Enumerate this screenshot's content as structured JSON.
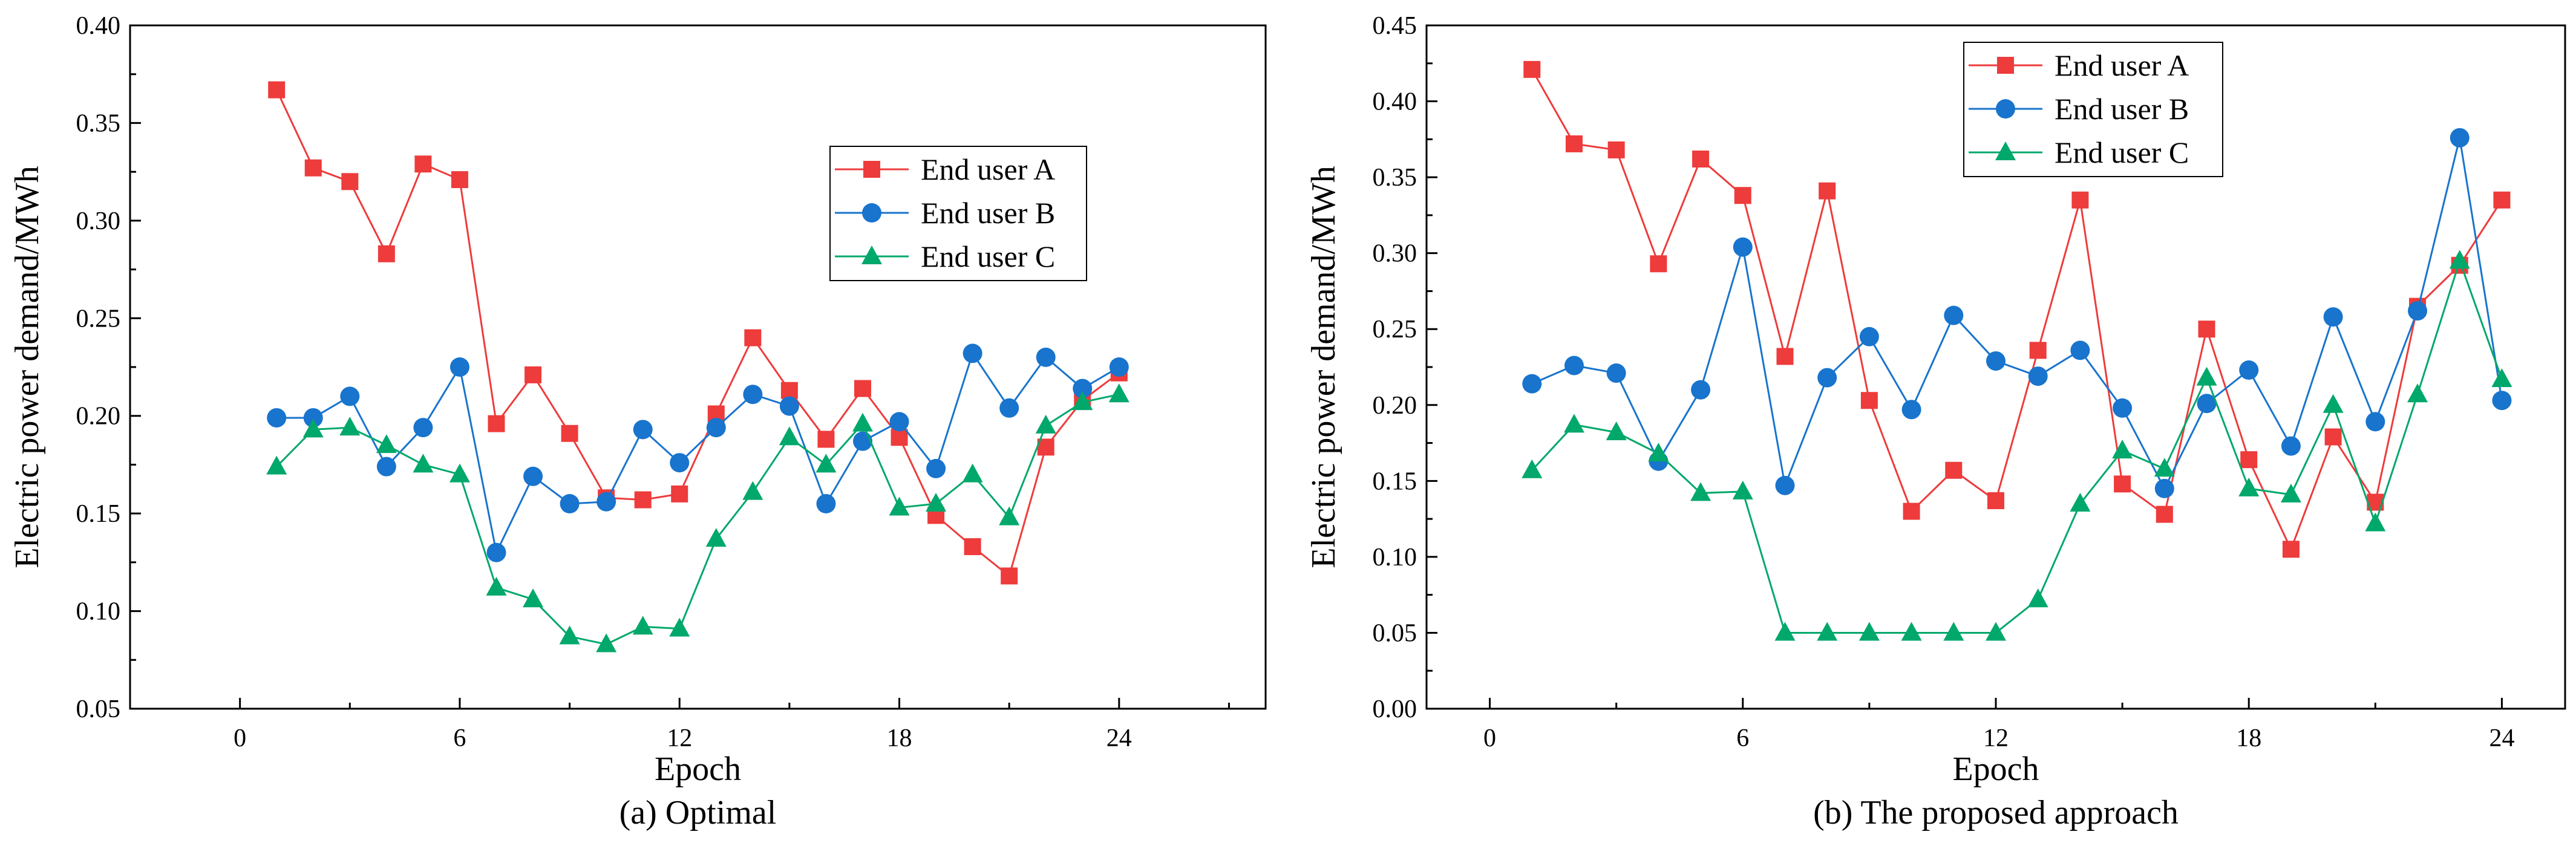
{
  "chart_data": [
    {
      "type": "line",
      "caption": "(a) Optimal",
      "xlabel": "Epoch",
      "ylabel": "Electric power demand/MWh",
      "xlim": [
        -3,
        28
      ],
      "ylim": [
        0.05,
        0.4
      ],
      "xticks": [
        0,
        6,
        12,
        18,
        24
      ],
      "yticks": [
        0.05,
        0.1,
        0.15,
        0.2,
        0.25,
        0.3,
        0.35,
        0.4
      ],
      "ytick_labels": [
        "0.05",
        "0.10",
        "0.15",
        "0.20",
        "0.25",
        "0.30",
        "0.35",
        "0.40"
      ],
      "legend_position": "upper-right",
      "x": [
        1,
        2,
        3,
        4,
        5,
        6,
        7,
        8,
        9,
        10,
        11,
        12,
        13,
        14,
        15,
        16,
        17,
        18,
        19,
        20,
        21,
        22,
        23,
        24
      ],
      "series": [
        {
          "name": "End user A",
          "color": "#EE3B3B",
          "marker": "square",
          "values": [
            0.367,
            0.327,
            0.32,
            0.283,
            0.329,
            0.321,
            0.196,
            0.221,
            0.191,
            0.158,
            0.157,
            0.16,
            0.201,
            0.24,
            0.213,
            0.188,
            0.214,
            0.189,
            0.149,
            0.133,
            0.118,
            0.184,
            0.208,
            0.222
          ]
        },
        {
          "name": "End user B",
          "color": "#1874CD",
          "marker": "circle",
          "values": [
            0.199,
            0.199,
            0.21,
            0.174,
            0.194,
            0.225,
            0.13,
            0.169,
            0.155,
            0.156,
            0.193,
            0.176,
            0.194,
            0.211,
            0.205,
            0.155,
            0.187,
            0.197,
            0.173,
            0.232,
            0.204,
            0.23,
            0.214,
            0.225
          ]
        },
        {
          "name": "End user C",
          "color": "#00A86B",
          "marker": "triangle",
          "values": [
            0.174,
            0.193,
            0.194,
            0.185,
            0.175,
            0.17,
            0.112,
            0.106,
            0.087,
            0.083,
            0.092,
            0.091,
            0.137,
            0.161,
            0.189,
            0.175,
            0.196,
            0.153,
            0.155,
            0.17,
            0.148,
            0.195,
            0.207,
            0.211
          ]
        }
      ]
    },
    {
      "type": "line",
      "caption": "(b) The proposed approach",
      "xlabel": "Epoch",
      "ylabel": "Electric power demand/MWh",
      "xlim": [
        -1.5,
        25.5
      ],
      "ylim": [
        0.0,
        0.45
      ],
      "xticks": [
        0,
        6,
        12,
        18,
        24
      ],
      "yticks": [
        0.0,
        0.05,
        0.1,
        0.15,
        0.2,
        0.25,
        0.3,
        0.35,
        0.4,
        0.45
      ],
      "ytick_labels": [
        "0.00",
        "0.05",
        "0.10",
        "0.15",
        "0.20",
        "0.25",
        "0.30",
        "0.35",
        "0.40",
        "0.45"
      ],
      "legend_position": "upper-center",
      "x": [
        1,
        2,
        3,
        4,
        5,
        6,
        7,
        8,
        9,
        10,
        11,
        12,
        13,
        14,
        15,
        16,
        17,
        18,
        19,
        20,
        21,
        22,
        23,
        24
      ],
      "series": [
        {
          "name": "End user A",
          "color": "#EE3B3B",
          "marker": "square",
          "values": [
            0.421,
            0.372,
            0.368,
            0.293,
            0.362,
            0.338,
            0.232,
            0.341,
            0.203,
            0.13,
            0.157,
            0.137,
            0.236,
            0.335,
            0.148,
            0.128,
            0.25,
            0.164,
            0.105,
            0.179,
            0.136,
            0.265,
            0.292,
            0.335
          ]
        },
        {
          "name": "End user B",
          "color": "#1874CD",
          "marker": "circle",
          "values": [
            0.214,
            0.226,
            0.221,
            0.163,
            0.21,
            0.304,
            0.147,
            0.218,
            0.245,
            0.197,
            0.259,
            0.229,
            0.219,
            0.236,
            0.198,
            0.145,
            0.201,
            0.223,
            0.173,
            0.258,
            0.189,
            0.262,
            0.376,
            0.203
          ]
        },
        {
          "name": "End user C",
          "color": "#00A86B",
          "marker": "triangle",
          "values": [
            0.157,
            0.187,
            0.182,
            0.168,
            0.142,
            0.143,
            0.05,
            0.05,
            0.05,
            0.05,
            0.05,
            0.05,
            0.072,
            0.135,
            0.17,
            0.158,
            0.218,
            0.145,
            0.141,
            0.2,
            0.122,
            0.207,
            0.295,
            0.217
          ]
        }
      ]
    }
  ]
}
